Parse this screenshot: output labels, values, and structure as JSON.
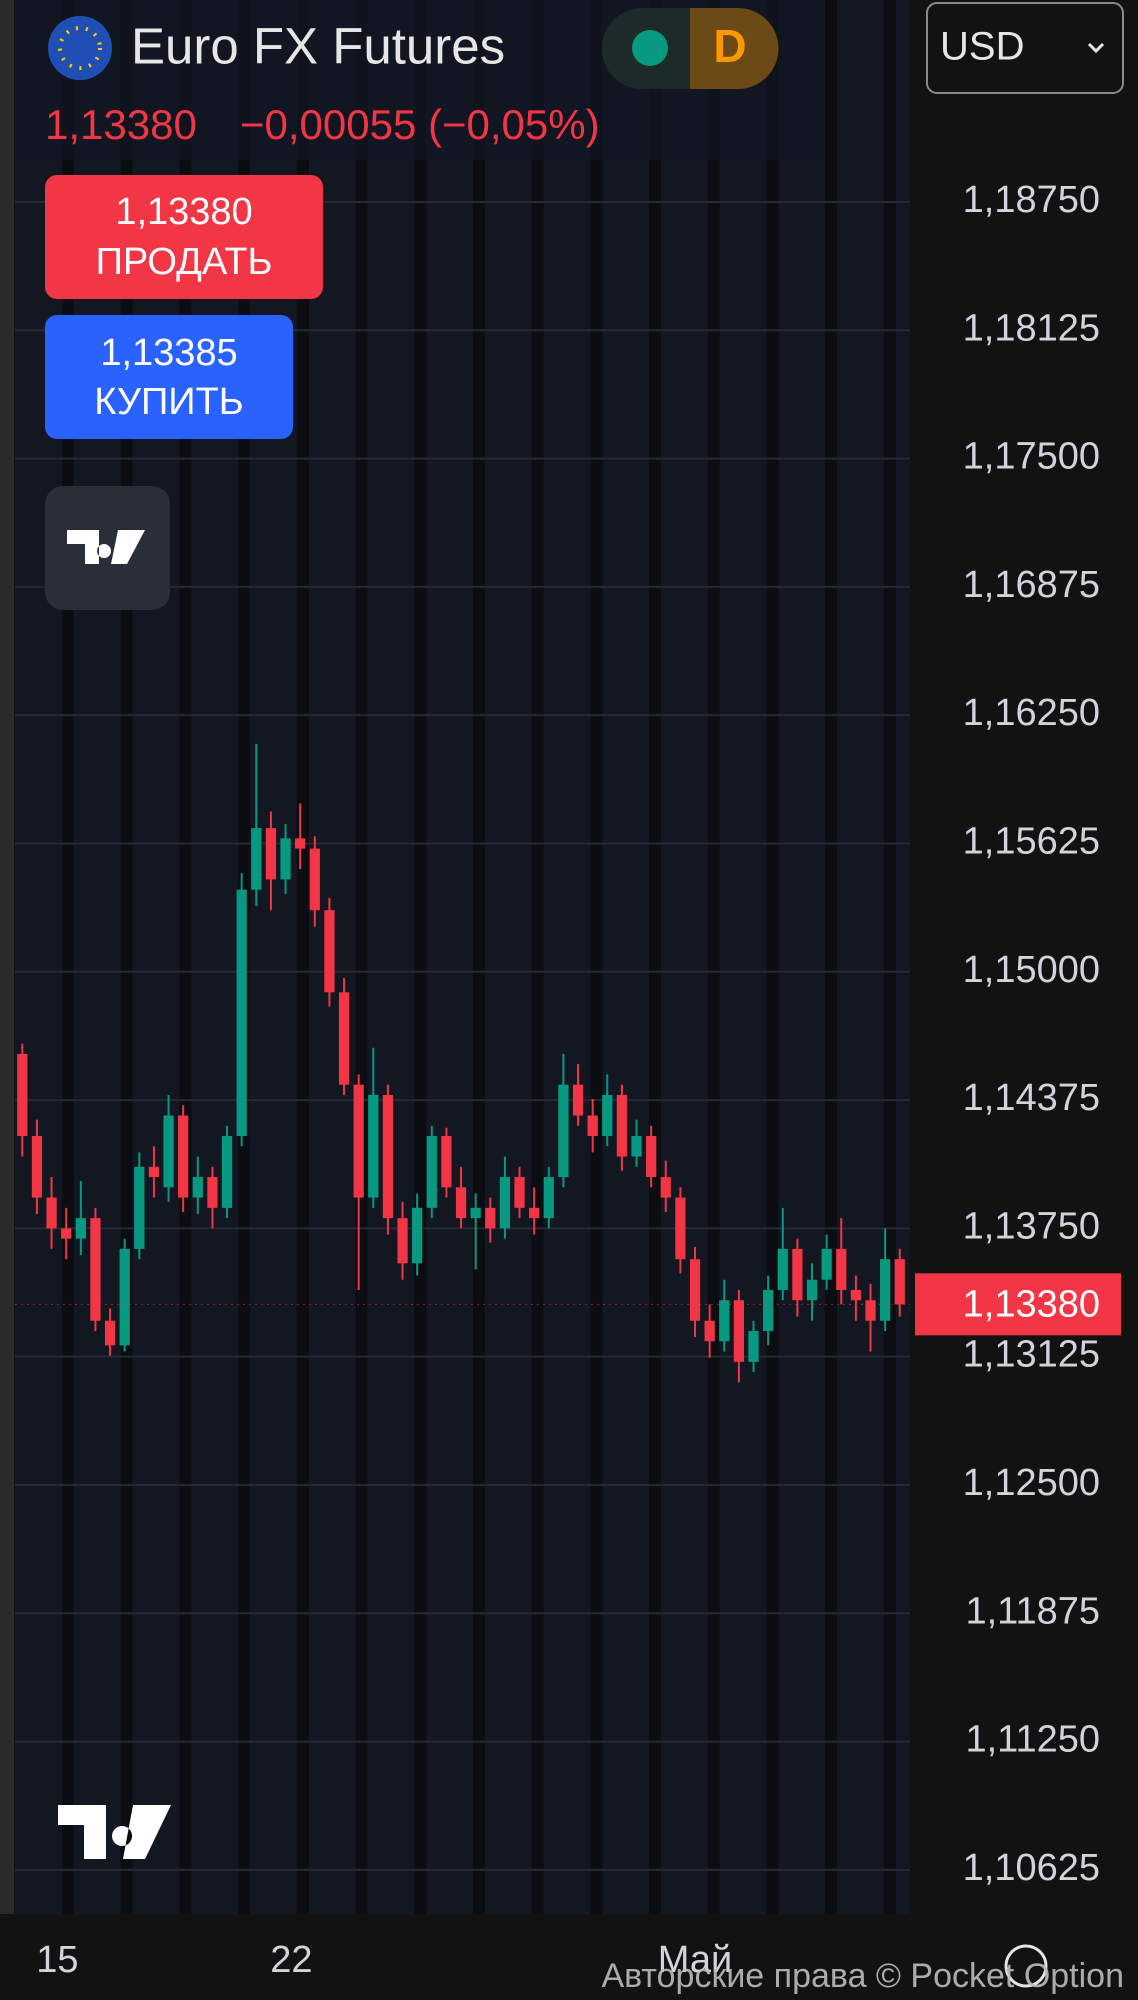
{
  "header": {
    "title": "Euro FX Futures",
    "interval": "D",
    "currency": "USD",
    "price": "1,13380",
    "change": "−0,00055 (−0,05%)",
    "sell_price": "1,13380",
    "sell_label": "ПРОДАТЬ",
    "buy_price": "1,13385",
    "buy_label": "КУПИТЬ"
  },
  "footer": {
    "copyright": "Авторские права © Pocket Option"
  },
  "chart_data": {
    "type": "candlestick",
    "x": [
      0,
      1,
      2,
      3,
      4,
      5,
      6,
      7,
      8,
      9,
      10,
      11,
      12,
      13,
      14,
      15,
      16,
      17,
      18,
      19,
      20,
      21,
      22,
      23,
      24,
      25,
      26,
      27,
      28,
      29,
      30,
      31,
      32,
      33,
      34,
      35,
      36,
      37,
      38,
      39,
      40,
      41,
      42,
      43,
      44,
      45,
      46,
      47,
      48,
      49,
      50,
      51,
      52,
      53,
      54,
      55,
      56,
      57,
      58,
      59,
      60
    ],
    "open": [
      1.146,
      1.142,
      1.139,
      1.1375,
      1.137,
      1.138,
      1.133,
      1.1318,
      1.1365,
      1.1405,
      1.1395,
      1.143,
      1.139,
      1.14,
      1.1385,
      1.142,
      1.154,
      1.157,
      1.1545,
      1.1565,
      1.156,
      1.153,
      1.149,
      1.1445,
      1.139,
      1.144,
      1.138,
      1.1358,
      1.1385,
      1.142,
      1.1395,
      1.138,
      1.1385,
      1.1375,
      1.14,
      1.1385,
      1.138,
      1.14,
      1.1445,
      1.143,
      1.142,
      1.144,
      1.141,
      1.142,
      1.14,
      1.139,
      1.136,
      1.133,
      1.132,
      1.134,
      1.131,
      1.1325,
      1.1345,
      1.1365,
      1.134,
      1.135,
      1.1365,
      1.1345,
      1.134,
      1.133,
      1.136
    ],
    "high": [
      1.1465,
      1.1428,
      1.14,
      1.1385,
      1.1398,
      1.1385,
      1.1336,
      1.137,
      1.1412,
      1.1415,
      1.144,
      1.1435,
      1.141,
      1.1405,
      1.1425,
      1.1548,
      1.1611,
      1.1578,
      1.1572,
      1.1582,
      1.1566,
      1.1536,
      1.1497,
      1.145,
      1.1463,
      1.1445,
      1.1388,
      1.1392,
      1.1425,
      1.1424,
      1.1405,
      1.1392,
      1.139,
      1.141,
      1.1405,
      1.1395,
      1.1405,
      1.146,
      1.1455,
      1.1438,
      1.145,
      1.1445,
      1.1428,
      1.1425,
      1.1408,
      1.1395,
      1.1366,
      1.1338,
      1.135,
      1.1345,
      1.133,
      1.1352,
      1.1385,
      1.137,
      1.1358,
      1.1372,
      1.138,
      1.1352,
      1.1348,
      1.1375,
      1.1365
    ],
    "low": [
      1.141,
      1.1382,
      1.1365,
      1.136,
      1.1362,
      1.1325,
      1.1313,
      1.1315,
      1.136,
      1.139,
      1.1388,
      1.1383,
      1.1382,
      1.1375,
      1.138,
      1.1415,
      1.1532,
      1.153,
      1.1538,
      1.155,
      1.1522,
      1.1483,
      1.144,
      1.1345,
      1.1385,
      1.1372,
      1.135,
      1.1352,
      1.138,
      1.139,
      1.1375,
      1.1355,
      1.1368,
      1.137,
      1.138,
      1.1372,
      1.1375,
      1.1395,
      1.1425,
      1.1412,
      1.1415,
      1.1403,
      1.1405,
      1.1395,
      1.1383,
      1.1353,
      1.1322,
      1.1312,
      1.1315,
      1.13,
      1.1305,
      1.1318,
      1.134,
      1.1332,
      1.133,
      1.1345,
      1.1338,
      1.133,
      1.1315,
      1.1325,
      1.1332
    ],
    "close": [
      1.142,
      1.139,
      1.1375,
      1.137,
      1.138,
      1.133,
      1.1318,
      1.1365,
      1.1405,
      1.14,
      1.143,
      1.139,
      1.14,
      1.1385,
      1.142,
      1.154,
      1.157,
      1.1545,
      1.1565,
      1.156,
      1.153,
      1.149,
      1.1445,
      1.139,
      1.144,
      1.138,
      1.1358,
      1.1385,
      1.142,
      1.1395,
      1.138,
      1.1385,
      1.1375,
      1.14,
      1.1385,
      1.138,
      1.14,
      1.1445,
      1.143,
      1.142,
      1.144,
      1.141,
      1.142,
      1.14,
      1.139,
      1.136,
      1.133,
      1.132,
      1.134,
      1.131,
      1.1325,
      1.1345,
      1.1365,
      1.134,
      1.135,
      1.1365,
      1.1345,
      1.134,
      1.133,
      1.136,
      1.1338
    ],
    "up_color": "#089981",
    "down_color": "#f23645",
    "xlim": [
      -0.5,
      60.7
    ],
    "xticks": [
      {
        "value": 2.4,
        "label": "15"
      },
      {
        "value": 18.4,
        "label": "22"
      },
      {
        "value": 46,
        "label": "Май"
      }
    ],
    "ylim": [
      1.1041,
      1.19734
    ],
    "yticks": [
      {
        "value": 1.1875,
        "label": "1,18750"
      },
      {
        "value": 1.18125,
        "label": "1,18125"
      },
      {
        "value": 1.175,
        "label": "1,17500"
      },
      {
        "value": 1.16875,
        "label": "1,16875"
      },
      {
        "value": 1.1625,
        "label": "1,16250"
      },
      {
        "value": 1.15625,
        "label": "1,15625"
      },
      {
        "value": 1.15,
        "label": "1,15000"
      },
      {
        "value": 1.14375,
        "label": "1,14375"
      },
      {
        "value": 1.1375,
        "label": "1,13750"
      },
      {
        "value": 1.13125,
        "label": "1,13125"
      },
      {
        "value": 1.125,
        "label": "1,12500"
      },
      {
        "value": 1.11875,
        "label": "1,11875"
      },
      {
        "value": 1.1125,
        "label": "1,11250"
      },
      {
        "value": 1.10625,
        "label": "1,10625"
      }
    ],
    "last_price": {
      "value": 1.1338,
      "label": "1,13380"
    },
    "grid": true
  }
}
